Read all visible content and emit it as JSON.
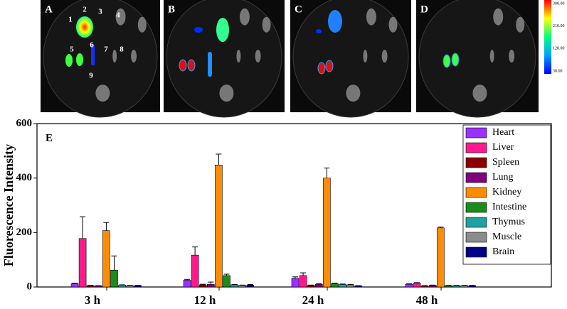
{
  "figure": {
    "panels": [
      "A",
      "B",
      "C",
      "D"
    ],
    "organ_numbers": [
      "1",
      "2",
      "3",
      "4",
      "5",
      "6",
      "7",
      "8",
      "9"
    ],
    "colorbar": {
      "ticks": [
        {
          "value": 300,
          "label": "300.00"
        },
        {
          "value": 210,
          "label": "210.00"
        },
        {
          "value": 120,
          "label": "120.00"
        },
        {
          "value": 30,
          "label": "30.00"
        }
      ]
    }
  },
  "chart_data": {
    "type": "bar",
    "panel_label": "E",
    "ylabel": "Fluorescence Intensity",
    "categories": [
      "3 h",
      "12 h",
      "24 h",
      "48 h"
    ],
    "series": [
      {
        "name": "Heart",
        "color": "#9b30ff",
        "values": [
          12,
          25,
          32,
          10
        ],
        "errors": [
          2,
          3,
          5,
          2
        ]
      },
      {
        "name": "Liver",
        "color": "#ff1a8c",
        "values": [
          178,
          117,
          42,
          14
        ],
        "errors": [
          80,
          30,
          10,
          2
        ]
      },
      {
        "name": "Spleen",
        "color": "#8b0000",
        "values": [
          5,
          8,
          6,
          4
        ],
        "errors": [
          1,
          2,
          1,
          1
        ]
      },
      {
        "name": "Lung",
        "color": "#800080",
        "values": [
          4,
          10,
          10,
          6
        ],
        "errors": [
          1,
          8,
          2,
          1
        ]
      },
      {
        "name": "Kidney",
        "color": "#ff8c00",
        "values": [
          207,
          448,
          400,
          217
        ],
        "errors": [
          30,
          40,
          37,
          3
        ]
      },
      {
        "name": "Intestine",
        "color": "#1a8c1a",
        "values": [
          62,
          42,
          12,
          5
        ],
        "errors": [
          52,
          5,
          2,
          1
        ]
      },
      {
        "name": "Thymus",
        "color": "#20a0a0",
        "values": [
          7,
          8,
          9,
          5
        ],
        "errors": [
          1,
          1,
          2,
          1
        ]
      },
      {
        "name": "Muscle",
        "color": "#8c8c8c",
        "values": [
          5,
          6,
          8,
          5
        ],
        "errors": [
          1,
          1,
          1,
          1
        ]
      },
      {
        "name": "Brain",
        "color": "#00008b",
        "values": [
          5,
          7,
          4,
          5
        ],
        "errors": [
          1,
          2,
          1,
          1
        ]
      }
    ],
    "ylim": [
      0,
      600
    ],
    "yticks": [
      0,
      200,
      400,
      600
    ]
  }
}
